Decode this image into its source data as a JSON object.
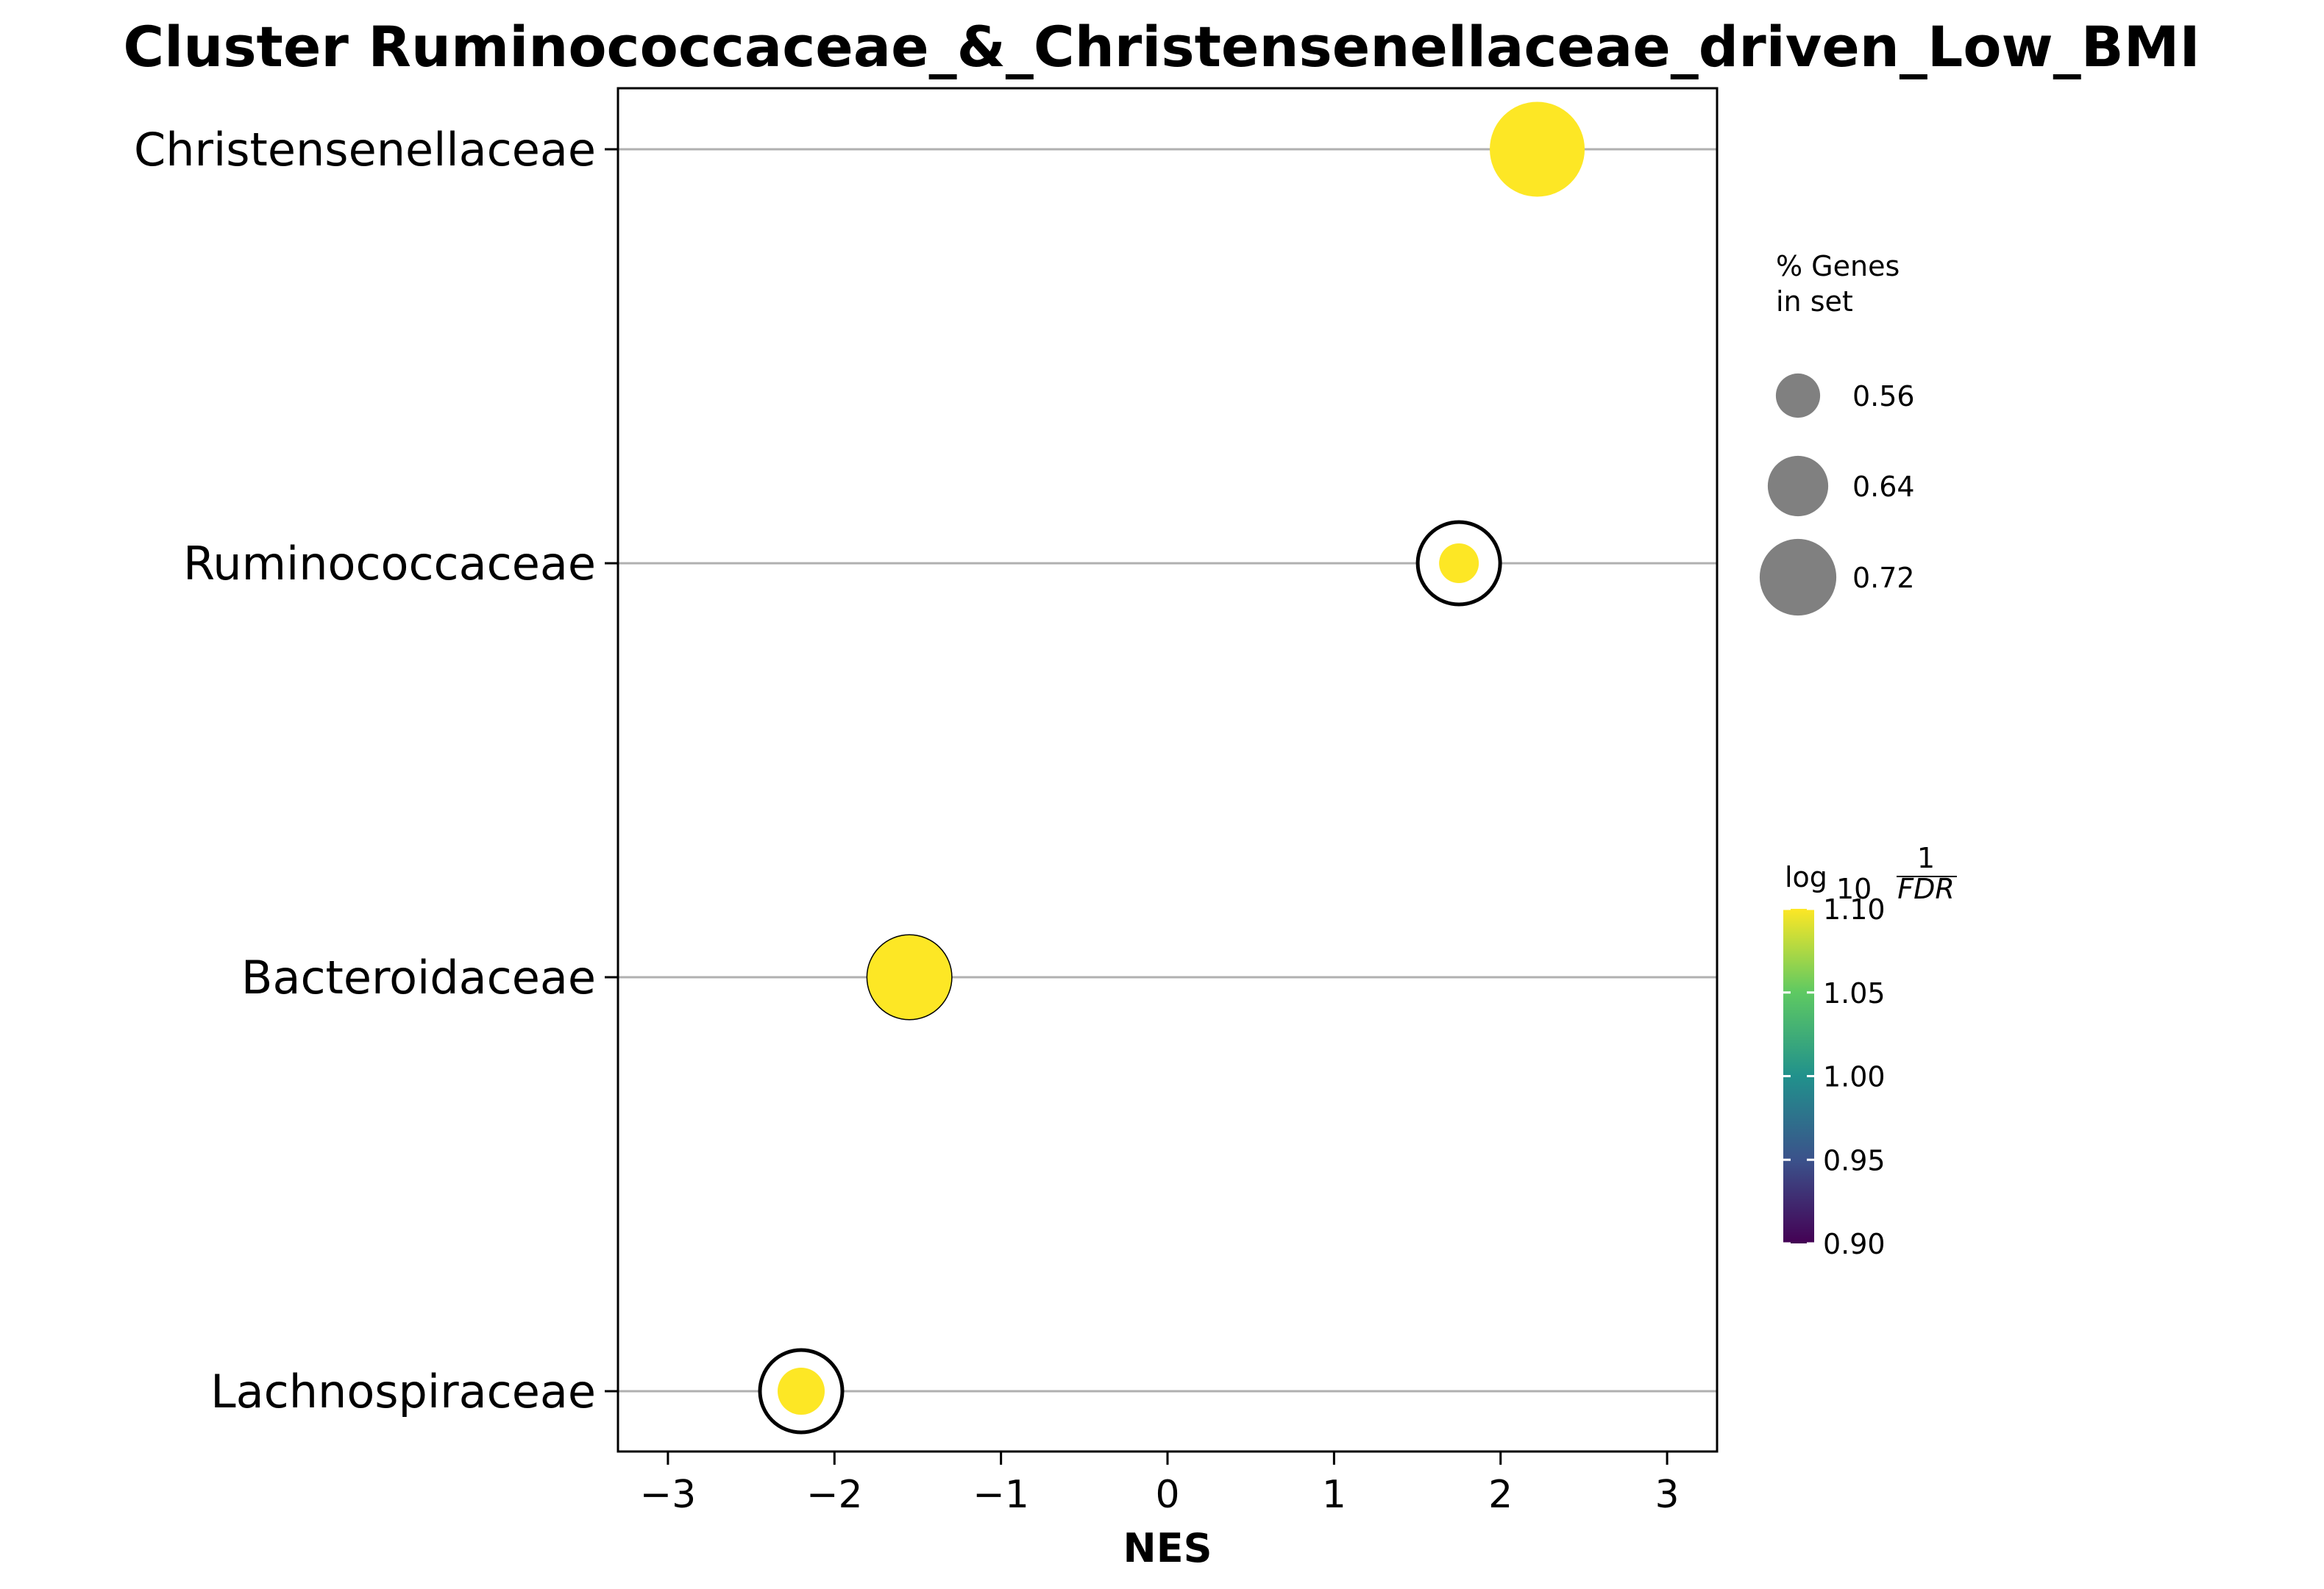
{
  "chart_data": {
    "type": "scatter",
    "title": "Cluster Ruminococcaceae_&_Christensenellaceae_driven_Low_BMI",
    "xlabel": "NES",
    "ylabel": "",
    "xlim": [
      -3.3,
      3.3
    ],
    "xticks": [
      -3,
      -2,
      -1,
      0,
      1,
      2,
      3
    ],
    "xtick_labels": [
      "−3",
      "−2",
      "−1",
      "0",
      "1",
      "2",
      "3"
    ],
    "categories": [
      "Christensenellaceae",
      "Ruminococcaceae",
      "Bacteroidaceae",
      "Lachnospiraceae"
    ],
    "points": [
      {
        "term": "Christensenellaceae",
        "nes": 2.22,
        "pct_genes": 0.73,
        "log10_inv_fdr": 1.1
      },
      {
        "term": "Ruminococcaceae",
        "nes": 1.75,
        "pct_genes": 0.58,
        "log10_inv_fdr": 1.1
      },
      {
        "term": "Bacteroidaceae",
        "nes": -1.55,
        "pct_genes": 0.7,
        "log10_inv_fdr": 1.1
      },
      {
        "term": "Lachnospiraceae",
        "nes": -2.2,
        "pct_genes": 0.6,
        "log10_inv_fdr": 1.1
      }
    ],
    "grid": "horizontal",
    "size_legend": {
      "title_lines": [
        "% Genes",
        "in set"
      ],
      "values": [
        0.56,
        0.64,
        0.72
      ],
      "labels": [
        "0.56",
        "0.64",
        "0.72"
      ],
      "color": "#808080"
    },
    "colorbar": {
      "label_main": "log",
      "label_sub": "10",
      "label_num": "1",
      "label_den": "FDR",
      "colormap": "viridis",
      "range": [
        0.9,
        1.1
      ],
      "ticks": [
        0.9,
        0.95,
        1.0,
        1.05,
        1.1
      ],
      "tick_labels": [
        "0.90",
        "0.95",
        "1.00",
        "1.05",
        "1.10"
      ],
      "colors": [
        "#440154",
        "#3b528b",
        "#21918c",
        "#5ec962",
        "#fde725"
      ]
    },
    "point_color": "#fde725",
    "ring_color": "#000000",
    "grid_color": "#b0b0b0"
  }
}
